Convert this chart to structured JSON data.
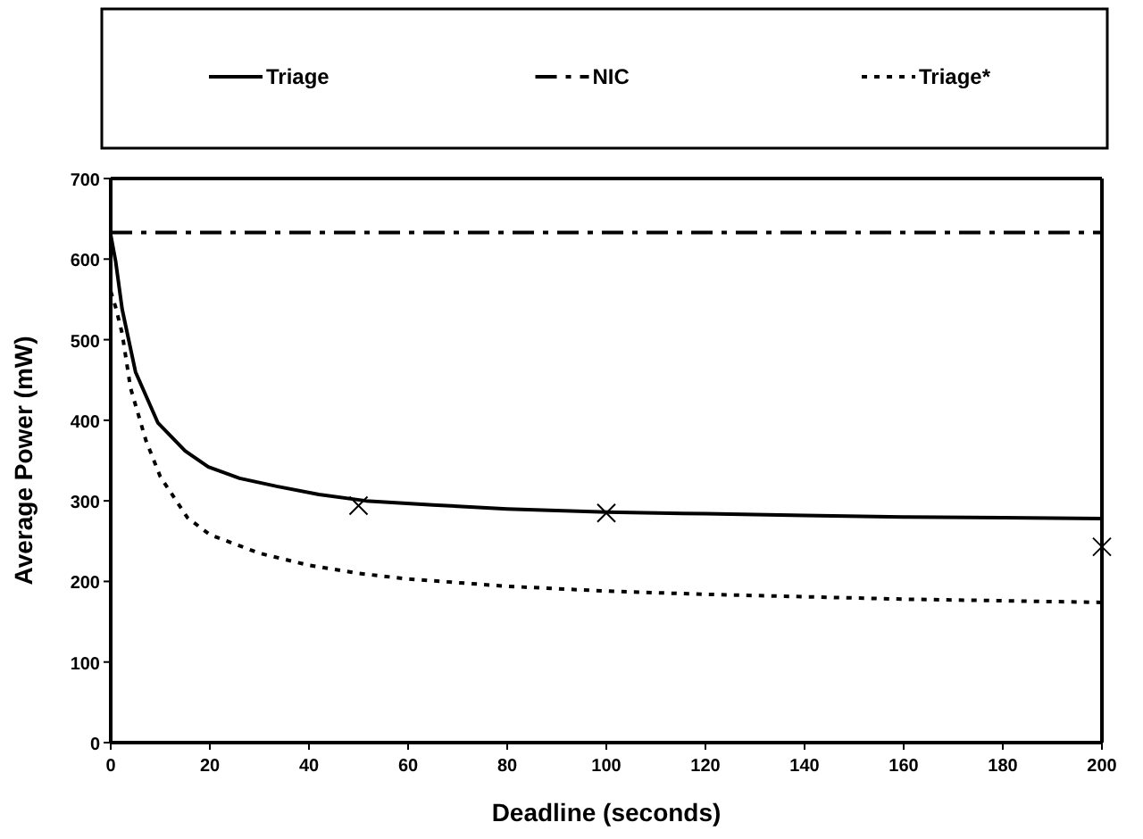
{
  "chart_data": {
    "type": "line",
    "xlabel": "Deadline (seconds)",
    "ylabel": "Average Power (mW)",
    "xlim": [
      0,
      200
    ],
    "xticks": [
      0,
      20,
      40,
      60,
      80,
      100,
      120,
      140,
      160,
      180,
      200
    ],
    "ylim": [
      0,
      700
    ],
    "yticks": [
      0,
      100,
      200,
      300,
      400,
      500,
      600,
      700
    ],
    "legend": "top",
    "grid": false,
    "marker": "none",
    "series": [
      {
        "name": "Triage",
        "color": "#000000",
        "line_style": "solid",
        "x": [
          0,
          1,
          2.3,
          5,
          9.5,
          15,
          19.7,
          26,
          33.5,
          42,
          51.5,
          65,
          80,
          100,
          120,
          140,
          160,
          180,
          200
        ],
        "values": [
          630,
          597,
          538,
          460,
          397,
          362,
          342,
          328,
          318,
          308,
          300,
          295,
          290,
          286,
          284,
          282,
          280,
          279,
          278
        ]
      },
      {
        "name": "NIC",
        "color": "#000000",
        "line_style": "dashdot",
        "x": [
          0,
          200
        ],
        "values": [
          633,
          633
        ]
      },
      {
        "name": "Triage*",
        "color": "#000000",
        "line_style": "dotted",
        "x": [
          0,
          1,
          2.3,
          4,
          7.1,
          10,
          15.5,
          20,
          30,
          40,
          50,
          60,
          80,
          100,
          120,
          140,
          160,
          180,
          200
        ],
        "values": [
          560,
          540,
          508,
          440,
          375,
          330,
          279,
          258,
          235,
          220,
          210,
          203,
          194,
          188,
          184,
          181,
          178,
          176,
          174
        ]
      },
      {
        "type": "scatter",
        "marker": "cross",
        "color": "#000000",
        "x": [
          50,
          100,
          200
        ],
        "values": [
          294,
          285,
          243
        ]
      }
    ]
  }
}
